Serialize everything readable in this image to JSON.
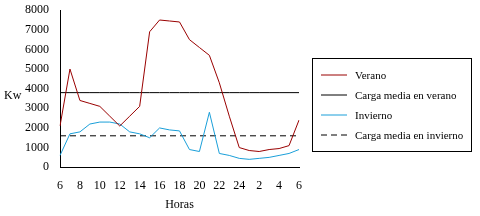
{
  "chart_data": {
    "type": "line",
    "x_label": "Horas",
    "y_label": "Kw",
    "categories": [
      "6",
      null,
      "8",
      null,
      "10",
      null,
      "12",
      null,
      "14",
      null,
      "16",
      null,
      "18",
      null,
      "20",
      null,
      "22",
      null,
      "24",
      null,
      "2",
      null,
      "4",
      null,
      "6"
    ],
    "series": [
      {
        "name": "Verano",
        "color": "#990000",
        "line_style": "solid",
        "values": [
          2100,
          5000,
          3400,
          3250,
          3100,
          2600,
          2100,
          2600,
          3100,
          6900,
          7500,
          7450,
          7400,
          6500,
          6100,
          5700,
          4300,
          2600,
          1000,
          850,
          800,
          900,
          950,
          1100,
          2400
        ]
      },
      {
        "name": "Carga media en verano",
        "color": "#000000",
        "line_style": "solid",
        "values": [
          3800,
          3800,
          3800,
          3800,
          3800,
          3800,
          3800,
          3800,
          3800,
          3800,
          3800,
          3800,
          3800,
          3800,
          3800,
          3800,
          3800,
          3800,
          3800,
          3800,
          3800,
          3800,
          3800,
          3800,
          3800
        ]
      },
      {
        "name": "Invierno",
        "color": "#1a9fd9",
        "line_style": "solid",
        "values": [
          600,
          1700,
          1800,
          2200,
          2300,
          2300,
          2200,
          1800,
          1700,
          1500,
          2000,
          1900,
          1850,
          900,
          800,
          2800,
          700,
          600,
          450,
          400,
          450,
          500,
          600,
          700,
          900
        ]
      },
      {
        "name": "Carga media en invierno",
        "color": "#000000",
        "line_style": "dashed",
        "values": [
          1600,
          1600,
          1600,
          1600,
          1600,
          1600,
          1600,
          1600,
          1600,
          1600,
          1600,
          1600,
          1600,
          1600,
          1600,
          1600,
          1600,
          1600,
          1600,
          1600,
          1600,
          1600,
          1600,
          1600,
          1600
        ]
      }
    ],
    "ylim": [
      0,
      8000
    ],
    "yticks": [
      0,
      1000,
      2000,
      3000,
      4000,
      5000,
      6000,
      7000,
      8000
    ],
    "grid": false,
    "legend": "right"
  }
}
